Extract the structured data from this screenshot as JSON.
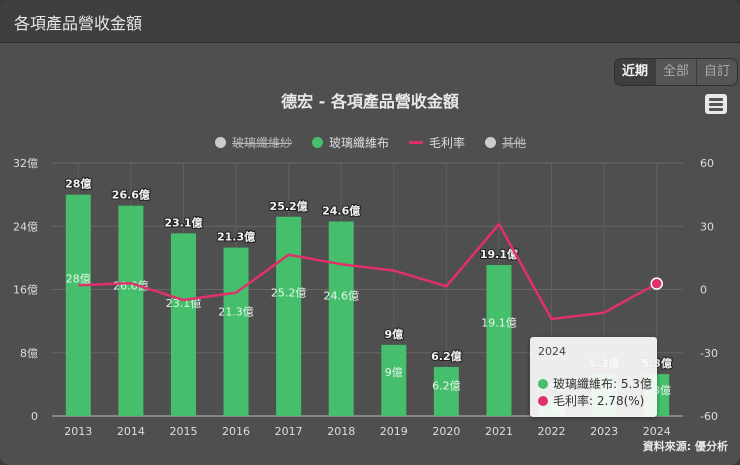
{
  "header": {
    "title": "各項產品營收金額"
  },
  "range_buttons": [
    {
      "label": "近期",
      "active": true
    },
    {
      "label": "全部",
      "active": false
    },
    {
      "label": "自訂",
      "active": false
    }
  ],
  "menu_icon": "hamburger-menu-icon",
  "source_label": "資料來源: 優分析",
  "colors": {
    "bar": "#45bf6b",
    "line": "#e0316b",
    "hidden": "#cccccc"
  },
  "tooltip": {
    "year": "2024",
    "rows": [
      {
        "label": "玻璃纖維布: 5.3億",
        "color": "#45bf6b"
      },
      {
        "label": "毛利率: 2.78(%)",
        "color": "#e0316b"
      }
    ]
  },
  "chart_data": {
    "type": "bar",
    "title": "德宏 - 各項產品營收金額",
    "categories": [
      "2013",
      "2014",
      "2015",
      "2016",
      "2017",
      "2018",
      "2019",
      "2020",
      "2021",
      "2022",
      "2023",
      "2024"
    ],
    "series": [
      {
        "name": "玻璃纖維紗",
        "type": "bar",
        "visible": false,
        "values": []
      },
      {
        "name": "玻璃纖維布",
        "type": "bar",
        "axis": "left",
        "unit": "億",
        "values": [
          28,
          26.6,
          23.1,
          21.3,
          25.2,
          24.6,
          9,
          6.2,
          19.1,
          2.4,
          5.3,
          5.3
        ]
      },
      {
        "name": "毛利率",
        "type": "line",
        "axis": "right",
        "unit": "%",
        "values": [
          2,
          3,
          -5,
          -1.5,
          16.5,
          12,
          9,
          1.5,
          31,
          -14,
          -11,
          2.78
        ]
      },
      {
        "name": "其他",
        "type": "bar",
        "visible": false,
        "values": []
      }
    ],
    "legend": [
      {
        "label": "玻璃纖維紗",
        "kind": "dot",
        "hidden": true
      },
      {
        "label": "玻璃纖維布",
        "kind": "dot",
        "hidden": false
      },
      {
        "label": "毛利率",
        "kind": "line",
        "hidden": false
      },
      {
        "label": "其他",
        "kind": "dot",
        "hidden": true
      }
    ],
    "left_axis": {
      "ticks": [
        "0",
        "8億",
        "16億",
        "24億",
        "32億"
      ],
      "values": [
        0,
        8,
        16,
        24,
        32
      ],
      "ylim": [
        0,
        32
      ]
    },
    "right_axis": {
      "ticks": [
        "-60",
        "-30",
        "0",
        "30",
        "60"
      ],
      "values": [
        -60,
        -30,
        0,
        30,
        60
      ],
      "ylim": [
        -60,
        60
      ]
    },
    "grid": true,
    "legend_position": "top"
  }
}
